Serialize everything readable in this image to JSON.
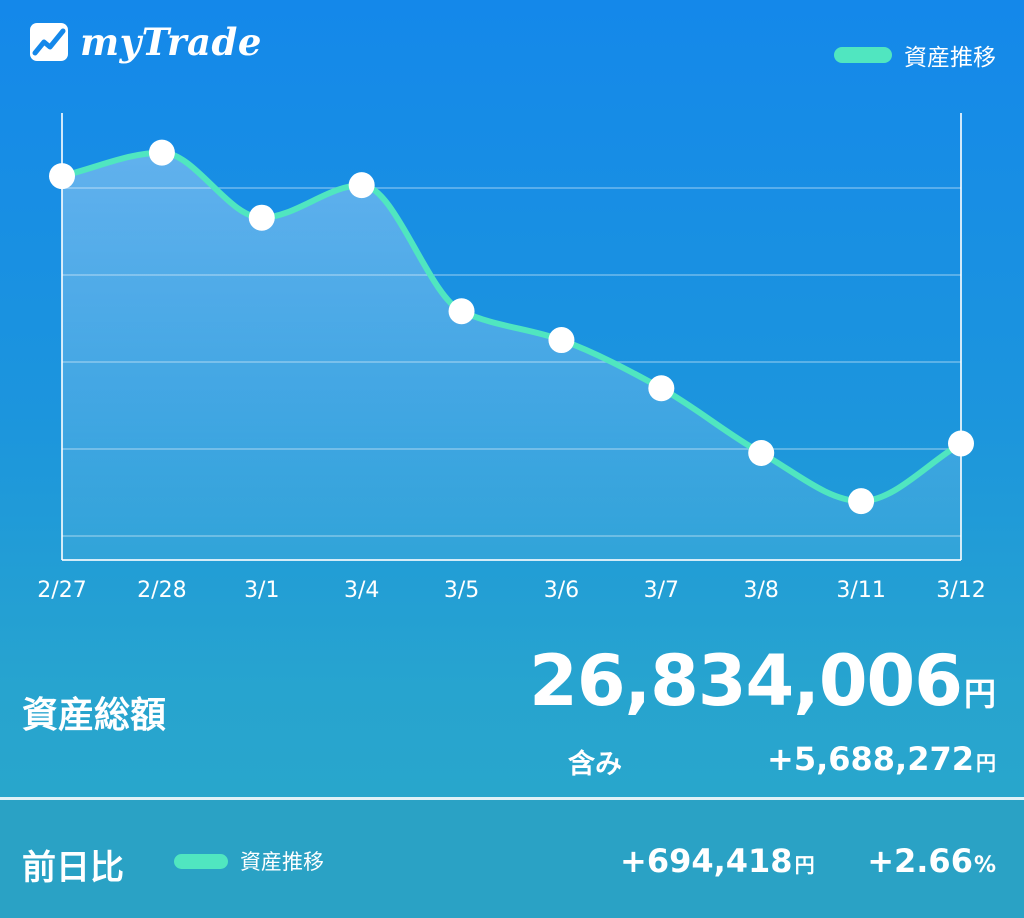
{
  "brand": {
    "name": "myTrade",
    "icon": "mytrade-logo-icon"
  },
  "legend": {
    "label": "資産推移",
    "color": "#50e6c0"
  },
  "chart_data": {
    "type": "line",
    "categories": [
      "2/27",
      "2/28",
      "3/1",
      "3/4",
      "3/5",
      "3/6",
      "3/7",
      "3/8",
      "3/11",
      "3/12"
    ],
    "values": [
      0.893,
      0.95,
      0.792,
      0.871,
      0.565,
      0.495,
      0.378,
      0.221,
      0.104,
      0.244
    ],
    "ylim": [
      0,
      1
    ],
    "y_ticks_note": "",
    "grid": true,
    "legend_position": "top-right",
    "line_color": "#50e6c0",
    "point_color": "#ffffff"
  },
  "summary": {
    "total_label": "資産総額",
    "total_value": "26,834,006",
    "currency": "円",
    "includes_label": "含み",
    "includes_value": "+5,688,272"
  },
  "daily": {
    "label": "前日比",
    "change_value": "+694,418",
    "change_pct": "+2.66",
    "pct_unit": "%"
  }
}
